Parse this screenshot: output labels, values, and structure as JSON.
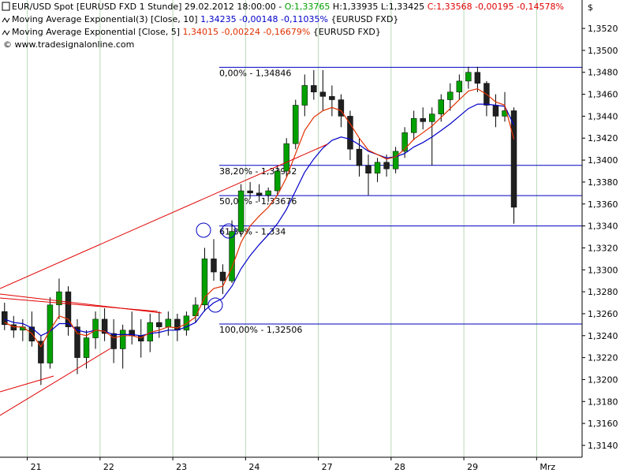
{
  "chart_data": {
    "type": "candlestick",
    "currency": "$",
    "header": {
      "instrument": "EUR/USD Spot [EURUSD FXD  1 Stunde] 29.02.2012 18:00:00 -",
      "open_label": "O:1,33765",
      "hl_label": "H:1,33935 L:1,33425",
      "close_label": "C:1,33568 -0,00195 -0,14578%",
      "copyright": "© www.tradesignalonline.com"
    },
    "up_color": "#00a000",
    "down_color": "#202020",
    "open": [
      1.3262,
      1.325,
      1.3245,
      1.3248,
      1.3235,
      1.3215,
      1.3268,
      1.328,
      1.3248,
      1.322,
      1.3238,
      1.3255,
      1.3242,
      1.3228,
      1.3245,
      1.324,
      1.3235,
      1.3252,
      1.3248,
      1.3255,
      1.3245,
      1.3258,
      1.3268,
      1.331,
      1.3298,
      1.329,
      1.3335,
      1.3372,
      1.337,
      1.3368,
      1.3372,
      1.339,
      1.3415,
      1.345,
      1.3468,
      1.3462,
      1.3458,
      1.3455,
      1.344,
      1.341,
      1.3395,
      1.3388,
      1.3398,
      1.3392,
      1.3408,
      1.3425,
      1.3438,
      1.3435,
      1.3442,
      1.3455,
      1.3462,
      1.3472,
      1.348,
      1.347,
      1.345,
      1.344,
      1.3445
    ],
    "high": [
      1.327,
      1.3258,
      1.3255,
      1.3262,
      1.324,
      1.3275,
      1.3292,
      1.3285,
      1.3255,
      1.3245,
      1.3262,
      1.3265,
      1.3255,
      1.325,
      1.3262,
      1.3255,
      1.326,
      1.3262,
      1.3262,
      1.326,
      1.3262,
      1.3275,
      1.332,
      1.3328,
      1.3305,
      1.3345,
      1.3378,
      1.338,
      1.3378,
      1.3375,
      1.3395,
      1.342,
      1.3455,
      1.3478,
      1.3482,
      1.3482,
      1.3468,
      1.346,
      1.3445,
      1.342,
      1.3405,
      1.3402,
      1.3405,
      1.3412,
      1.343,
      1.3445,
      1.3448,
      1.3448,
      1.346,
      1.347,
      1.3478,
      1.3485,
      1.3485,
      1.3472,
      1.346,
      1.3462,
      1.3448
    ],
    "low": [
      1.3245,
      1.3238,
      1.3235,
      1.323,
      1.3195,
      1.321,
      1.3255,
      1.324,
      1.3205,
      1.321,
      1.3228,
      1.3235,
      1.3215,
      1.321,
      1.3232,
      1.322,
      1.3225,
      1.3238,
      1.324,
      1.3235,
      1.324,
      1.3252,
      1.3262,
      1.329,
      1.3278,
      1.3288,
      1.333,
      1.3365,
      1.3362,
      1.3362,
      1.3368,
      1.3385,
      1.341,
      1.344,
      1.3455,
      1.3445,
      1.344,
      1.343,
      1.34,
      1.3385,
      1.3368,
      1.338,
      1.3385,
      1.3388,
      1.3402,
      1.3418,
      1.3428,
      1.3395,
      1.3435,
      1.3445,
      1.3455,
      1.3465,
      1.3462,
      1.344,
      1.343,
      1.3435,
      1.3342
    ],
    "close": [
      1.325,
      1.3245,
      1.3248,
      1.3235,
      1.3215,
      1.3268,
      1.328,
      1.3248,
      1.322,
      1.3238,
      1.3255,
      1.3242,
      1.3228,
      1.3245,
      1.324,
      1.3235,
      1.3252,
      1.3248,
      1.3255,
      1.3245,
      1.3258,
      1.3268,
      1.331,
      1.3298,
      1.329,
      1.3335,
      1.3372,
      1.337,
      1.3368,
      1.3372,
      1.339,
      1.3415,
      1.345,
      1.3468,
      1.3462,
      1.3458,
      1.3455,
      1.344,
      1.341,
      1.3395,
      1.3388,
      1.3398,
      1.3392,
      1.3408,
      1.3425,
      1.3438,
      1.3435,
      1.3442,
      1.3455,
      1.3462,
      1.3472,
      1.348,
      1.347,
      1.345,
      1.344,
      1.3445,
      1.3357
    ],
    "series": [
      {
        "name": "Moving Average Exponential(3) [Close, 10]",
        "readout": "1,34235 -0,00148 -0,11035%",
        "source": "{EURUSD FXD}",
        "color": "#0000c8",
        "values": [
          1.3255,
          1.3252,
          1.3251,
          1.3247,
          1.324,
          1.3244,
          1.3251,
          1.3251,
          1.3245,
          1.3243,
          1.3245,
          1.3244,
          1.3241,
          1.3241,
          1.3241,
          1.324,
          1.3242,
          1.3243,
          1.3245,
          1.3245,
          1.3248,
          1.3252,
          1.3263,
          1.327,
          1.3274,
          1.3285,
          1.3301,
          1.3313,
          1.3323,
          1.3332,
          1.3342,
          1.3355,
          1.3372,
          1.3389,
          1.3401,
          1.3411,
          1.3418,
          1.3421,
          1.3419,
          1.3414,
          1.3408,
          1.3405,
          1.3402,
          1.3403,
          1.3406,
          1.3412,
          1.3416,
          1.3421,
          1.3427,
          1.3433,
          1.344,
          1.3447,
          1.3451,
          1.3451,
          1.345,
          1.3449,
          1.3432
        ]
      },
      {
        "name": "Moving Average Exponential [Close, 5]",
        "readout": "1,34015 -0,00224 -0,16679%",
        "source": "{EURUSD FXD}",
        "color": "#e03000",
        "values": [
          1.3252,
          1.3248,
          1.3248,
          1.3242,
          1.323,
          1.3245,
          1.3258,
          1.3255,
          1.3242,
          1.324,
          1.3245,
          1.3244,
          1.3238,
          1.324,
          1.324,
          1.3238,
          1.3243,
          1.3245,
          1.3248,
          1.3247,
          1.3251,
          1.3257,
          1.3275,
          1.3283,
          1.3285,
          1.3302,
          1.3325,
          1.334,
          1.3349,
          1.3357,
          1.3368,
          1.3384,
          1.3406,
          1.3427,
          1.3439,
          1.3445,
          1.3448,
          1.3445,
          1.3433,
          1.342,
          1.3409,
          1.3405,
          1.3401,
          1.3403,
          1.341,
          1.3419,
          1.3425,
          1.3431,
          1.3439,
          1.3447,
          1.3455,
          1.3463,
          1.3465,
          1.346,
          1.3453,
          1.345,
          1.3419
        ]
      }
    ],
    "annotations": [
      {
        "value": 1.34846,
        "label": "0,00% - 1,34846"
      },
      {
        "value": 1.33952,
        "label": "38,20% - 1,33952"
      },
      {
        "value": 1.33676,
        "label": "50,00% - 1,33676"
      },
      {
        "value": 1.334,
        "label": "61,80% - 1,334"
      },
      {
        "value": 1.32506,
        "label": "100,00% - 1,32506"
      }
    ],
    "annotation_color": "#0000c0",
    "xlim": [
      -0.5,
      63.5
    ],
    "xticks": [
      {
        "value": 3,
        "label": "21"
      },
      {
        "value": 11,
        "label": "22"
      },
      {
        "value": 19,
        "label": "23"
      },
      {
        "value": 27,
        "label": "24"
      },
      {
        "value": 35,
        "label": "27"
      },
      {
        "value": 43,
        "label": "28"
      },
      {
        "value": 51,
        "label": "29"
      },
      {
        "value": 59,
        "label": "Mrz"
      }
    ],
    "ylim": [
      1.31292,
      1.35459
    ],
    "yticks": [
      {
        "value": 1.314,
        "label": "1,3140"
      },
      {
        "value": 1.316,
        "label": "1,3160"
      },
      {
        "value": 1.318,
        "label": "1,3180"
      },
      {
        "value": 1.32,
        "label": "1,3200"
      },
      {
        "value": 1.322,
        "label": "1,3220"
      },
      {
        "value": 1.324,
        "label": "1,3240"
      },
      {
        "value": 1.326,
        "label": "1,3260"
      },
      {
        "value": 1.328,
        "label": "1,3280"
      },
      {
        "value": 1.33,
        "label": "1,3300"
      },
      {
        "value": 1.332,
        "label": "1,3320"
      },
      {
        "value": 1.334,
        "label": "1,3340"
      },
      {
        "value": 1.336,
        "label": "1,3360"
      },
      {
        "value": 1.338,
        "label": "1,3380"
      },
      {
        "value": 1.34,
        "label": "1,3400"
      },
      {
        "value": 1.342,
        "label": "1,3420"
      },
      {
        "value": 1.344,
        "label": "1,3440"
      },
      {
        "value": 1.346,
        "label": "1,3460"
      },
      {
        "value": 1.348,
        "label": "1,3480"
      },
      {
        "value": 1.35,
        "label": "1,3500"
      },
      {
        "value": 1.352,
        "label": "1,3520"
      }
    ],
    "grid": "x"
  }
}
